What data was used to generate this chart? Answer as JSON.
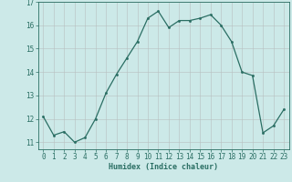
{
  "x": [
    0,
    1,
    2,
    3,
    4,
    5,
    6,
    7,
    8,
    9,
    10,
    11,
    12,
    13,
    14,
    15,
    16,
    17,
    18,
    19,
    20,
    21,
    22,
    23
  ],
  "y": [
    12.1,
    11.3,
    11.45,
    11.0,
    11.2,
    12.0,
    13.1,
    13.9,
    14.6,
    15.3,
    16.3,
    16.6,
    15.9,
    16.2,
    16.2,
    16.3,
    16.45,
    16.0,
    15.3,
    14.0,
    13.85,
    11.4,
    11.7,
    12.4
  ],
  "line_color": "#2a6e63",
  "marker": "o",
  "marker_size": 1.5,
  "bg_color": "#cce9e8",
  "grid_color": "#b8bfbf",
  "xlabel": "Humidex (Indice chaleur)",
  "ylim": [
    10.7,
    17.0
  ],
  "xlim": [
    -0.5,
    23.5
  ],
  "yticks": [
    11,
    12,
    13,
    14,
    15,
    16,
    17
  ],
  "xticks": [
    0,
    1,
    2,
    3,
    4,
    5,
    6,
    7,
    8,
    9,
    10,
    11,
    12,
    13,
    14,
    15,
    16,
    17,
    18,
    19,
    20,
    21,
    22,
    23
  ],
  "xlabel_fontsize": 6.0,
  "tick_fontsize": 5.5,
  "line_width": 0.9
}
